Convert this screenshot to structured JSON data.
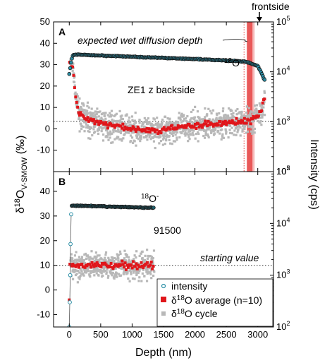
{
  "chart_data": [
    {
      "panel": "A",
      "type": "scatter",
      "x_range": [
        -250,
        3250
      ],
      "y_left_range": [
        -20,
        50
      ],
      "y_right_range_log": [
        100,
        100000
      ],
      "dotted_line_y": 3.5,
      "frontside_line_x": 2860,
      "annotations": {
        "panel_label": "A",
        "sample": "ZE1 z backside",
        "species_pre": "18",
        "species_main": "O",
        "species_sup": "-",
        "wet_diffusion": "expected wet diffusion depth",
        "frontside": "frontside"
      },
      "series": [
        {
          "name": "intensity",
          "axis": "right",
          "start": [
            0,
            9000
          ],
          "plateau": [
            [
              60,
              22000
            ],
            [
              200,
              22000
            ],
            [
              1000,
              20000
            ],
            [
              2000,
              18000
            ],
            [
              2800,
              16000
            ],
            [
              3000,
              13000
            ],
            [
              3100,
              7000
            ]
          ]
        },
        {
          "name": "δ18O average (n=10)",
          "axis": "left",
          "points": [
            [
              0,
              32
            ],
            [
              60,
              28
            ],
            [
              100,
              15
            ],
            [
              150,
              7
            ],
            [
              300,
              4
            ],
            [
              600,
              2
            ],
            [
              1000,
              0
            ],
            [
              1400,
              -1
            ],
            [
              1800,
              1
            ],
            [
              2200,
              2
            ],
            [
              2600,
              3
            ],
            [
              2900,
              4
            ],
            [
              3050,
              8
            ],
            [
              3100,
              14
            ]
          ]
        },
        {
          "name": "δ18O cycle",
          "axis": "left",
          "mean_follows": "δ18O average (n=10)",
          "spread": 6
        }
      ]
    },
    {
      "panel": "B",
      "type": "scatter",
      "x_range": [
        -250,
        3250
      ],
      "y_left_range": [
        -15,
        48
      ],
      "y_right_range_log": [
        100,
        100000
      ],
      "dotted_line_y": 10,
      "annotations": {
        "panel_label": "B",
        "sample": "91500",
        "species_pre": "18",
        "species_main": "O",
        "species_sup": "-",
        "starting_value": "starting value"
      },
      "series": [
        {
          "name": "intensity",
          "axis": "right",
          "early": [
            [
              0,
              100
            ],
            [
              8,
              300
            ],
            [
              15,
              1000
            ],
            [
              20,
              4000
            ],
            [
              30,
              15000
            ]
          ],
          "plateau": [
            [
              40,
              22000
            ],
            [
              1350,
              20000
            ]
          ]
        },
        {
          "name": "δ18O average (n=10)",
          "axis": "left",
          "early": [
            [
              0,
              -4
            ]
          ],
          "plateau_mean": 10,
          "x_end": 1350
        },
        {
          "name": "δ18O cycle",
          "axis": "left",
          "mean": 10,
          "spread": 5,
          "x_end": 1350
        }
      ]
    }
  ],
  "axes": {
    "x_label": "Depth (nm)",
    "x_ticks": [
      "0",
      "500",
      "1000",
      "1500",
      "2000",
      "2500",
      "3000"
    ],
    "x_tick_values": [
      0,
      500,
      1000,
      1500,
      2000,
      2500,
      3000
    ],
    "y_left_label": {
      "main": "δ",
      "sup": "18",
      "o": "O",
      "sub": "V-SMOW",
      "unit": " (‰)"
    },
    "y_right_label": "Intensity (cps)",
    "top_left_ticks": [
      "50",
      "40",
      "30",
      "20",
      "10",
      "0",
      "-10",
      "-20"
    ],
    "top_left_tick_values": [
      50,
      40,
      30,
      20,
      10,
      0,
      -10,
      -20
    ],
    "bottom_left_ticks": [
      "40",
      "30",
      "20",
      "10",
      "0",
      "-10"
    ],
    "bottom_left_tick_values": [
      40,
      30,
      20,
      10,
      0,
      -10
    ],
    "right_ticks": [
      {
        "base": "10",
        "exp": "5",
        "v": 100000
      },
      {
        "base": "10",
        "exp": "4",
        "v": 10000
      },
      {
        "base": "10",
        "exp": "3",
        "v": 1000
      },
      {
        "base": "10",
        "exp": "2",
        "v": 100
      }
    ]
  },
  "legend": {
    "items": [
      {
        "label": "intensity",
        "marker": "open-circle",
        "color": "#2b8fa6"
      },
      {
        "label_pre": "δ",
        "label_sup": "18",
        "label_post": "O average (n=10)",
        "marker": "square",
        "color": "#e0161b"
      },
      {
        "label_pre": "δ",
        "label_sup": "18",
        "label_post": "O cycle",
        "marker": "square",
        "color": "#b8b8b8"
      }
    ]
  },
  "colors": {
    "intensity_fill": "#2b8fa6",
    "intensity_stroke": "#1a1a1a",
    "average": "#e0161b",
    "cycle": "#b8b8b8",
    "frontside_band": "#e53b3b"
  }
}
